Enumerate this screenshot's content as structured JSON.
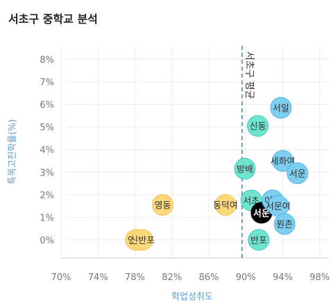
{
  "title": "서초구 중학교 분석",
  "chart_data": {
    "type": "scatter",
    "title": "서초구 중학교 분석",
    "xlabel": "학업성취도",
    "ylabel": "특목고진학률(%)",
    "xlim": [
      70,
      99
    ],
    "ylim": [
      -0.8,
      8.6
    ],
    "x_ticks": [
      70,
      74,
      78,
      82,
      86,
      90,
      94,
      98
    ],
    "y_ticks": [
      0,
      1,
      2,
      3,
      4,
      5,
      6,
      7,
      8
    ],
    "x_tick_labels": [
      "70%",
      "74%",
      "78%",
      "82%",
      "86%",
      "90%",
      "94%",
      "98%"
    ],
    "y_tick_labels": [
      "0%",
      "1%",
      "2%",
      "3%",
      "4%",
      "5%",
      "6%",
      "7%",
      "8%"
    ],
    "grid": true,
    "average": {
      "label": "서초구 평균",
      "x": 89.6
    },
    "group_colors": {
      "low": "#fbd97a",
      "mid": "#6ee3cf",
      "high": "#7ecef0",
      "highlight": "#000000"
    },
    "points": [
      {
        "name": "언남",
        "x": 78.1,
        "y": 0.0,
        "group": "low"
      },
      {
        "name": "신반포",
        "x": 78.8,
        "y": 0.0,
        "group": "low"
      },
      {
        "name": "영동",
        "x": 81.0,
        "y": 1.55,
        "group": "low"
      },
      {
        "name": "동덕여",
        "x": 87.8,
        "y": 1.55,
        "group": "low"
      },
      {
        "name": "방배",
        "x": 89.9,
        "y": 3.15,
        "group": "mid"
      },
      {
        "name": "신동",
        "x": 91.3,
        "y": 5.05,
        "group": "mid"
      },
      {
        "name": "서초",
        "x": 90.6,
        "y": 1.75,
        "group": "mid"
      },
      {
        "name": "반포",
        "x": 91.4,
        "y": 0.0,
        "group": "mid"
      },
      {
        "name": "서운",
        "x": 91.7,
        "y": 1.2,
        "group": "highlight"
      },
      {
        "name": "이수",
        "x": 92.9,
        "y": 1.75,
        "group": "high"
      },
      {
        "name": "서일",
        "x": 93.8,
        "y": 5.85,
        "group": "high"
      },
      {
        "name": "세화여",
        "x": 94.0,
        "y": 3.5,
        "group": "high"
      },
      {
        "name": "서문여",
        "x": 93.5,
        "y": 1.5,
        "group": "high"
      },
      {
        "name": "원촌",
        "x": 94.2,
        "y": 0.7,
        "group": "high"
      },
      {
        "name": "서운",
        "x": 95.6,
        "y": 2.95,
        "group": "high"
      }
    ]
  }
}
